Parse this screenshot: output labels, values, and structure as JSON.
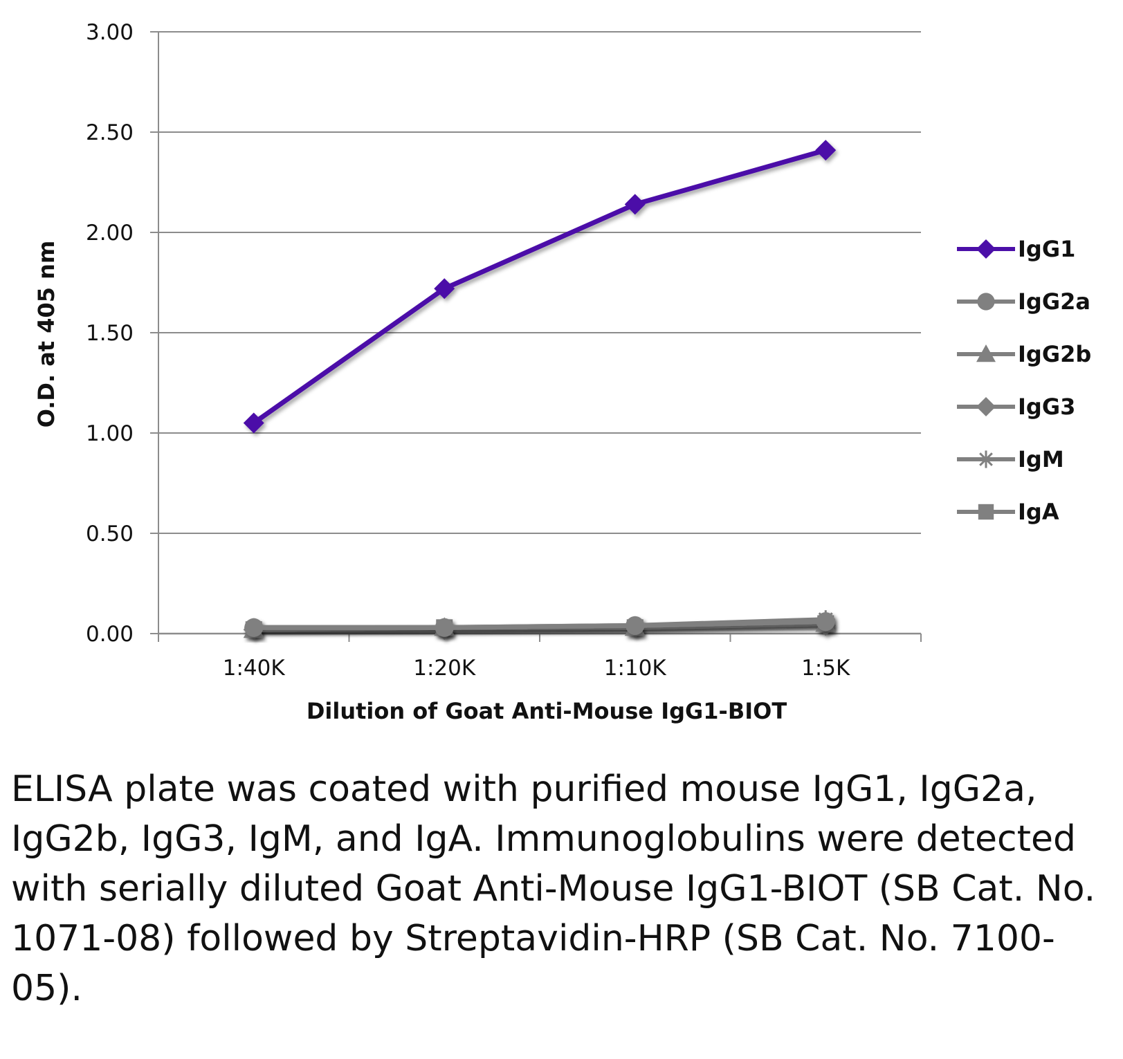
{
  "chart_data": {
    "type": "line",
    "categories": [
      "1:40K",
      "1:20K",
      "1:10K",
      "1:5K"
    ],
    "xlabel": "Dilution of Goat Anti-Mouse IgG1-BIOT",
    "ylabel": "O.D. at 405 nm",
    "ylim": [
      0,
      3
    ],
    "yticks": [
      "0.00",
      "0.50",
      "1.00",
      "1.50",
      "2.00",
      "2.50",
      "3.00"
    ],
    "ytick_values": [
      0,
      0.5,
      1,
      1.5,
      2,
      2.5,
      3
    ],
    "grid": true,
    "legend_position": "right",
    "series": [
      {
        "name": "IgG1",
        "marker": "diamond",
        "color": "#4b0fa8",
        "values": [
          1.05,
          1.72,
          2.14,
          2.41
        ]
      },
      {
        "name": "IgG2a",
        "marker": "circle",
        "color": "#808080",
        "values": [
          0.03,
          0.03,
          0.04,
          0.06
        ]
      },
      {
        "name": "IgG2b",
        "marker": "triangle",
        "color": "#808080",
        "values": [
          0.02,
          0.03,
          0.03,
          0.05
        ]
      },
      {
        "name": "IgG3",
        "marker": "diamond",
        "color": "#808080",
        "values": [
          0.02,
          0.02,
          0.03,
          0.04
        ]
      },
      {
        "name": "IgM",
        "marker": "star",
        "color": "#808080",
        "values": [
          0.03,
          0.03,
          0.04,
          0.07
        ]
      },
      {
        "name": "IgA",
        "marker": "square",
        "color": "#808080",
        "values": [
          0.02,
          0.03,
          0.03,
          0.05
        ]
      }
    ]
  },
  "caption": "ELISA plate was coated with purified mouse IgG1, IgG2a, IgG2b, IgG3, IgM, and IgA. Immunoglobulins were detected with serially diluted Goat Anti-Mouse IgG1-BIOT (SB Cat. No. 1071-08) followed by Streptavidin-HRP (SB Cat. No. 7100-05)."
}
